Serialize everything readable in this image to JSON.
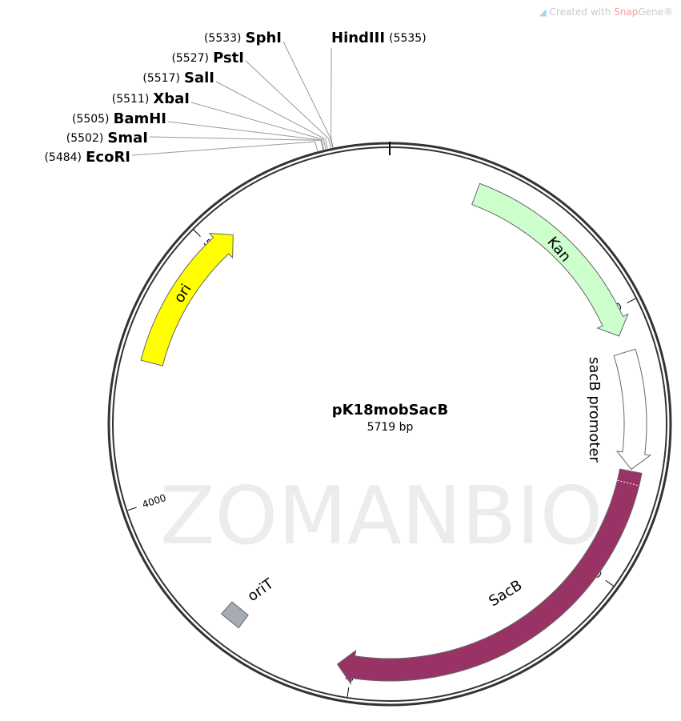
{
  "credit": {
    "prefix": "Created with ",
    "brand1": "Snap",
    "brand2": "Gene®",
    "icon": "snapgene-logo-icon"
  },
  "watermark": "ZOMANBIO",
  "plasmid": {
    "name": "pK18mobSacB",
    "length_label": "5719 bp",
    "length": 5719
  },
  "ticks": [
    {
      "pos": 1000,
      "label": "1000"
    },
    {
      "pos": 2000,
      "label": "2000"
    },
    {
      "pos": 3000,
      "label": "3000"
    },
    {
      "pos": 4000,
      "label": "4000"
    },
    {
      "pos": 5000,
      "label": "5000"
    }
  ],
  "features": [
    {
      "name": "Kan",
      "start": 326,
      "end": 1096,
      "direction": "forward",
      "color": "#ccffcc"
    },
    {
      "name": "sacB promoter",
      "start": 1160,
      "end": 1598,
      "direction": "forward",
      "color": "#ffffff"
    },
    {
      "name": "SacB",
      "start": 1605,
      "end": 3055,
      "direction": "forward",
      "color": "#993366"
    },
    {
      "name": "oriT",
      "start": 3440,
      "end": 3520,
      "direction": "none",
      "color": "#a6acb3"
    },
    {
      "name": "ori",
      "start": 4518,
      "end": 5090,
      "direction": "forward",
      "color": "#ffff00"
    }
  ],
  "enzymes": [
    {
      "name": "SphI",
      "pos": 5533,
      "pos_label": "(5533)"
    },
    {
      "name": "PstI",
      "pos": 5527,
      "pos_label": "(5527)"
    },
    {
      "name": "SalI",
      "pos": 5517,
      "pos_label": "(5517)"
    },
    {
      "name": "XbaI",
      "pos": 5511,
      "pos_label": "(5511)"
    },
    {
      "name": "BamHI",
      "pos": 5505,
      "pos_label": "(5505)"
    },
    {
      "name": "SmaI",
      "pos": 5502,
      "pos_label": "(5502)"
    },
    {
      "name": "EcoRI",
      "pos": 5484,
      "pos_label": "(5484)"
    },
    {
      "name": "HindIII",
      "pos": 5535,
      "pos_label": "(5535)"
    }
  ]
}
